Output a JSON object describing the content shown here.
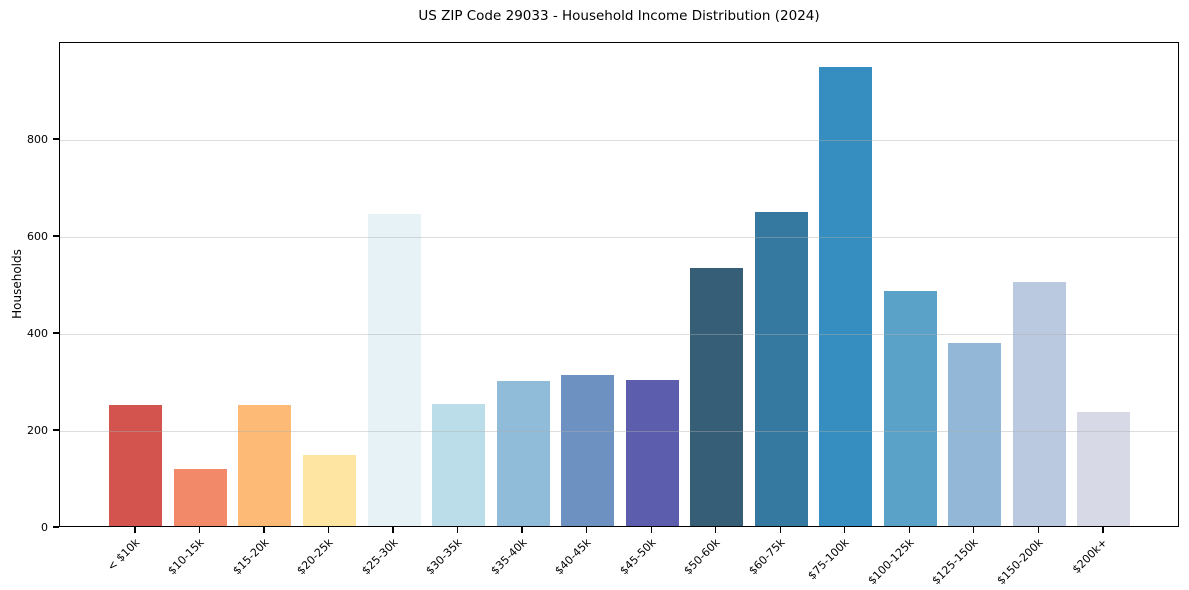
{
  "chart_data": {
    "type": "bar",
    "title": "US ZIP Code 29033 - Household Income Distribution (2024)",
    "xlabel": "",
    "ylabel": "Households",
    "categories": [
      "< $10k",
      "$10-15k",
      "$15-20k",
      "$20-25k",
      "$25-30k",
      "$30-35k",
      "$35-40k",
      "$40-45k",
      "$45-50k",
      "$50-60k",
      "$60-75k",
      "$75-100k",
      "$100-125k",
      "$125-150k",
      "$150-200k",
      "$200k+"
    ],
    "values": [
      249,
      117,
      249,
      146,
      644,
      251,
      299,
      312,
      302,
      531,
      648,
      946,
      485,
      378,
      503,
      236
    ],
    "bar_colors": [
      "#d3544e",
      "#f28968",
      "#fcba76",
      "#fee5a2",
      "#e6f2f5",
      "#badde9",
      "#90bcd9",
      "#6d92c2",
      "#5c5dad",
      "#365e76",
      "#3579a1",
      "#368dc0",
      "#5aa2c8",
      "#92b7d7",
      "#bac9e0",
      "#d7d9e6"
    ],
    "ylim": [
      0,
      1000
    ],
    "yticks": [
      0,
      200,
      400,
      600,
      800
    ],
    "grid": "horizontal-only",
    "grid_over_bars": true,
    "legend": "none",
    "background": "#ffffff",
    "spine_color": "#000000"
  }
}
